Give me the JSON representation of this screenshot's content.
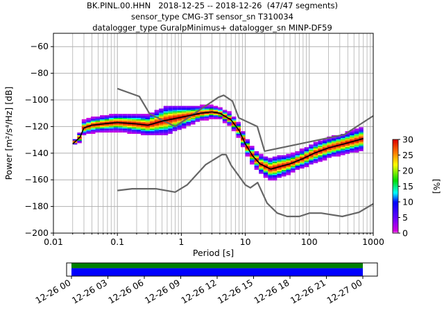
{
  "title_lines": [
    "BK.PINL.00.HHN   2018-12-25 -- 2018-12-26  (47/47 segments)",
    "sensor_type CMG-3T sensor_sn T310034",
    "datalogger_type GuralpMinimus+ datalogger_sn MINP-DF59"
  ],
  "chart_data": {
    "type": "heatmap",
    "xlabel": "Period [s]",
    "ylabel": "Power [m²/s⁴/Hz] [dB]",
    "x_scale": "log",
    "xlim": [
      0.01,
      1000
    ],
    "ylim": [
      -200,
      -50
    ],
    "x_tick_labels": [
      "0.01",
      "0.1",
      "1",
      "10",
      "100",
      "1000"
    ],
    "y_tick_labels": [
      "−60",
      "−80",
      "−100",
      "−120",
      "−140",
      "−160",
      "−180",
      "−200"
    ],
    "y_ticks": [
      -60,
      -80,
      -100,
      -120,
      -140,
      -160,
      -180,
      -200
    ],
    "grid": true,
    "colorbar": {
      "label": "[%]",
      "ticks": [
        "0",
        "5",
        "10",
        "15",
        "20",
        "25",
        "30"
      ],
      "range": [
        0,
        30
      ]
    },
    "nhnm": [
      [
        0.1,
        -91.5
      ],
      [
        0.22,
        -97.4
      ],
      [
        0.32,
        -110.5
      ],
      [
        0.8,
        -120
      ],
      [
        3.8,
        -98
      ],
      [
        4.6,
        -96.5
      ],
      [
        6.3,
        -101
      ],
      [
        7.9,
        -113.5
      ],
      [
        15.4,
        -120
      ],
      [
        20,
        -138.5
      ],
      [
        354.8,
        -126
      ],
      [
        1000,
        -112
      ]
    ],
    "nlnm": [
      [
        0.1,
        -168
      ],
      [
        0.17,
        -166.7
      ],
      [
        0.4,
        -166.7
      ],
      [
        0.8,
        -169.2
      ],
      [
        1.24,
        -163.7
      ],
      [
        2.4,
        -148.6
      ],
      [
        4.3,
        -141.1
      ],
      [
        5,
        -141.1
      ],
      [
        6,
        -149
      ],
      [
        10,
        -163.8
      ],
      [
        12,
        -166
      ],
      [
        15.6,
        -162.1
      ],
      [
        21.9,
        -177.5
      ],
      [
        31.6,
        -185
      ],
      [
        45,
        -187.5
      ],
      [
        70,
        -187.5
      ],
      [
        101,
        -185
      ],
      [
        154,
        -185
      ],
      [
        328,
        -187.5
      ],
      [
        600,
        -184.4
      ],
      [
        1000,
        -178
      ]
    ],
    "mode_curve": [
      [
        0.02,
        -133
      ],
      [
        0.026,
        -128
      ],
      [
        0.03,
        -121
      ],
      [
        0.04,
        -119
      ],
      [
        0.06,
        -118
      ],
      [
        0.1,
        -117
      ],
      [
        0.2,
        -118
      ],
      [
        0.3,
        -119
      ],
      [
        0.5,
        -116
      ],
      [
        1,
        -113
      ],
      [
        2,
        -110
      ],
      [
        3,
        -109
      ],
      [
        4,
        -110
      ],
      [
        6,
        -115
      ],
      [
        8,
        -123
      ],
      [
        10,
        -133
      ],
      [
        13,
        -142
      ],
      [
        17,
        -148
      ],
      [
        25,
        -152
      ],
      [
        35,
        -150
      ],
      [
        50,
        -148
      ],
      [
        80,
        -144
      ],
      [
        120,
        -140
      ],
      [
        200,
        -136
      ],
      [
        350,
        -133
      ],
      [
        500,
        -131
      ],
      [
        700,
        -129
      ]
    ],
    "psd_spread": [
      [
        0.02,
        0
      ],
      [
        0.03,
        3
      ],
      [
        0.1,
        4
      ],
      [
        0.3,
        5
      ],
      [
        0.6,
        8
      ],
      [
        1,
        6
      ],
      [
        2,
        3
      ],
      [
        4,
        2
      ],
      [
        8,
        3
      ],
      [
        15,
        4
      ],
      [
        30,
        6
      ],
      [
        60,
        4
      ],
      [
        120,
        5
      ],
      [
        300,
        5
      ],
      [
        700,
        6
      ]
    ],
    "time_axis": {
      "tick_labels": [
        "12-26 00",
        "12-26 03",
        "12-26 06",
        "12-26 09",
        "12-26 12",
        "12-26 15",
        "12-26 18",
        "12-26 21",
        "12-27 00"
      ],
      "range_hours": [
        -0.4,
        25.2
      ],
      "coverage_hours": [
        0,
        24
      ],
      "data_color": "#0000ff",
      "gap_free_color": "#008000"
    }
  }
}
